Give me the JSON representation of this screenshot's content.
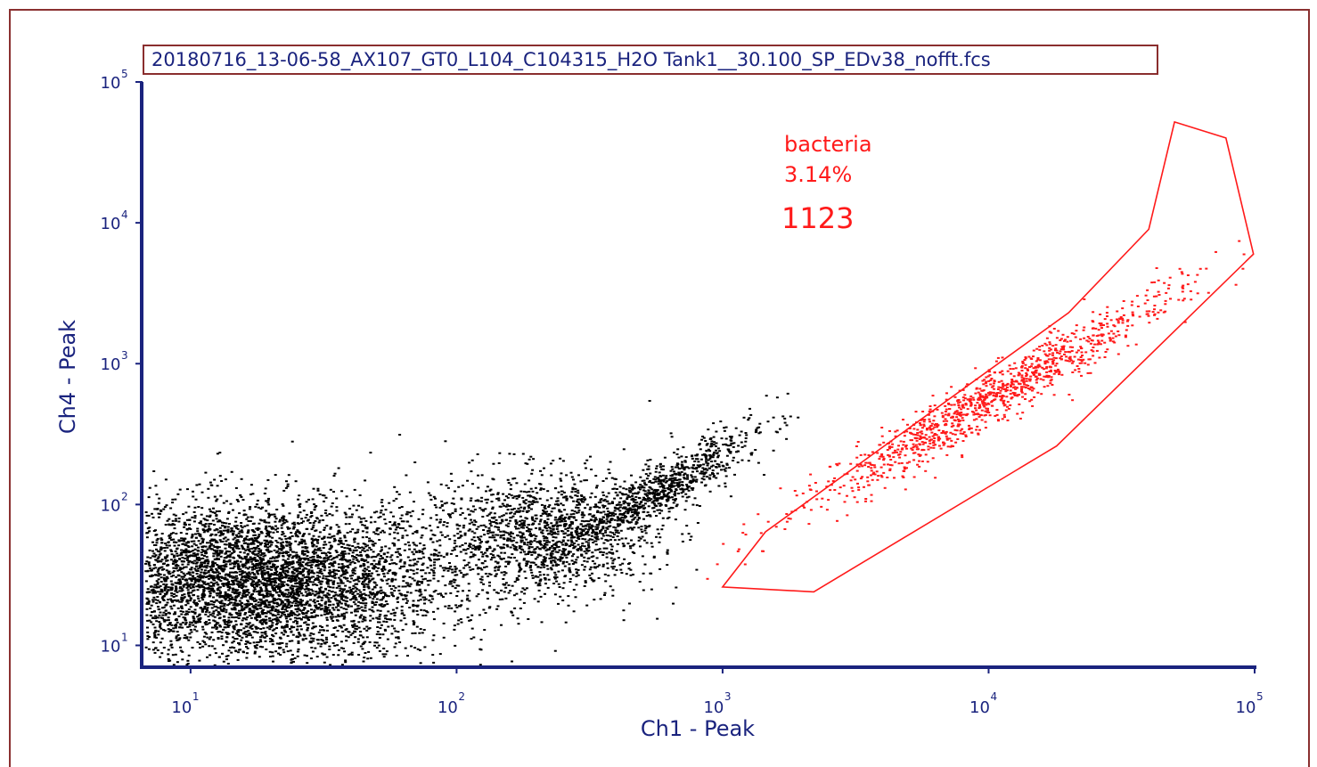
{
  "file_title": "20180716_13-06-58_AX107_GT0_L104_C104315_H2O Tank1__30.100_SP_EDv38_nofft.fcs",
  "chart_data": {
    "type": "scatter",
    "title": "20180716_13-06-58_AX107_GT0_L104_C104315_H2O Tank1__30.100_SP_EDv38_nofft.fcs",
    "xlabel": "Ch1 - Peak",
    "ylabel": "Ch4 - Peak",
    "x_scale": "log",
    "y_scale": "log",
    "xlim": [
      6.6,
      100000
    ],
    "ylim": [
      7.1,
      100000
    ],
    "x_ticks": [
      {
        "base": "10",
        "exp": "1",
        "value": 10
      },
      {
        "base": "10",
        "exp": "2",
        "value": 100
      },
      {
        "base": "10",
        "exp": "3",
        "value": 1000
      },
      {
        "base": "10",
        "exp": "4",
        "value": 10000
      },
      {
        "base": "10",
        "exp": "5",
        "value": 100000
      }
    ],
    "y_ticks": [
      {
        "base": "10",
        "exp": "1",
        "value": 10
      },
      {
        "base": "10",
        "exp": "2",
        "value": 100
      },
      {
        "base": "10",
        "exp": "3",
        "value": 1000
      },
      {
        "base": "10",
        "exp": "4",
        "value": 10000
      },
      {
        "base": "10",
        "exp": "5",
        "value": 100000
      }
    ],
    "colors": {
      "events": "#000000",
      "gated_events": "#ff1a1a",
      "gate": "#ff1a1a",
      "axis": "#1a237e"
    },
    "gate": {
      "name": "bacteria",
      "percent": "3.14%",
      "count": "1123",
      "polygon": [
        [
          1000,
          26
        ],
        [
          1450,
          64
        ],
        [
          20000,
          2300
        ],
        [
          40000,
          9000
        ],
        [
          50000,
          52000
        ],
        [
          78000,
          40000
        ],
        [
          99000,
          6000
        ],
        [
          18000,
          260
        ],
        [
          2200,
          24
        ]
      ]
    },
    "event_clusters": [
      {
        "name": "background",
        "gated": false,
        "n": 5200,
        "logx": [
          1.25,
          0.35
        ],
        "logy": [
          1.45,
          0.28
        ]
      },
      {
        "name": "background-tail",
        "gated": false,
        "n": 1400,
        "logx": [
          2.3,
          0.22
        ],
        "logy": [
          1.8,
          0.22
        ]
      },
      {
        "name": "diagonal-streak",
        "gated": false,
        "n": 900,
        "logx": [
          2.75,
          0.18
        ],
        "logy": [
          2.1,
          0.5
        ],
        "streak": true
      },
      {
        "name": "bacteria",
        "gated": true,
        "n": 1123,
        "logx": [
          4.0,
          0.35
        ],
        "logy": [
          2.75,
          0.4
        ],
        "streak": true
      }
    ]
  }
}
